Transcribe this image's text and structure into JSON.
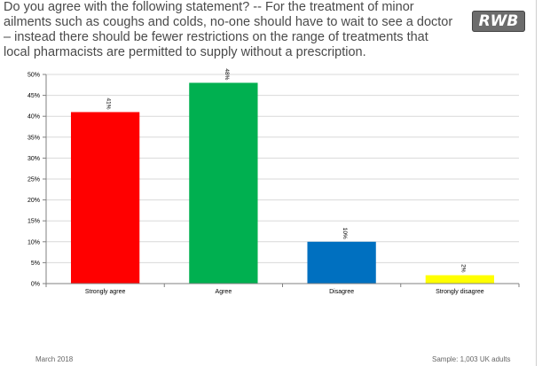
{
  "title_lines": [
    "Do you agree with the following statement? -- For the treatment of minor",
    "ailments such as coughs and colds, no-one should have to wait to see a doctor",
    "– instead there should be fewer restrictions on the range of treatments that",
    "local pharmacists are permitted to supply without a prescription."
  ],
  "logo_text": "RWB",
  "footer": {
    "date": "March 2018",
    "sample": "Sample: 1,003 UK adults"
  },
  "chart_data": {
    "type": "bar",
    "categories": [
      "Strongly agree",
      "Agree",
      "Disagree",
      "Strongly disagree"
    ],
    "values": [
      41,
      48,
      10,
      2
    ],
    "value_labels": [
      "41%",
      "48%",
      "10%",
      "2%"
    ],
    "colors": [
      "#ff0000",
      "#00b050",
      "#0070c0",
      "#ffff00"
    ],
    "ylim": [
      0,
      50
    ],
    "yticks": [
      "0%",
      "5%",
      "10%",
      "15%",
      "20%",
      "25%",
      "30%",
      "35%",
      "40%",
      "45%",
      "50%"
    ],
    "grid": true,
    "title": "",
    "xlabel": "",
    "ylabel": ""
  }
}
